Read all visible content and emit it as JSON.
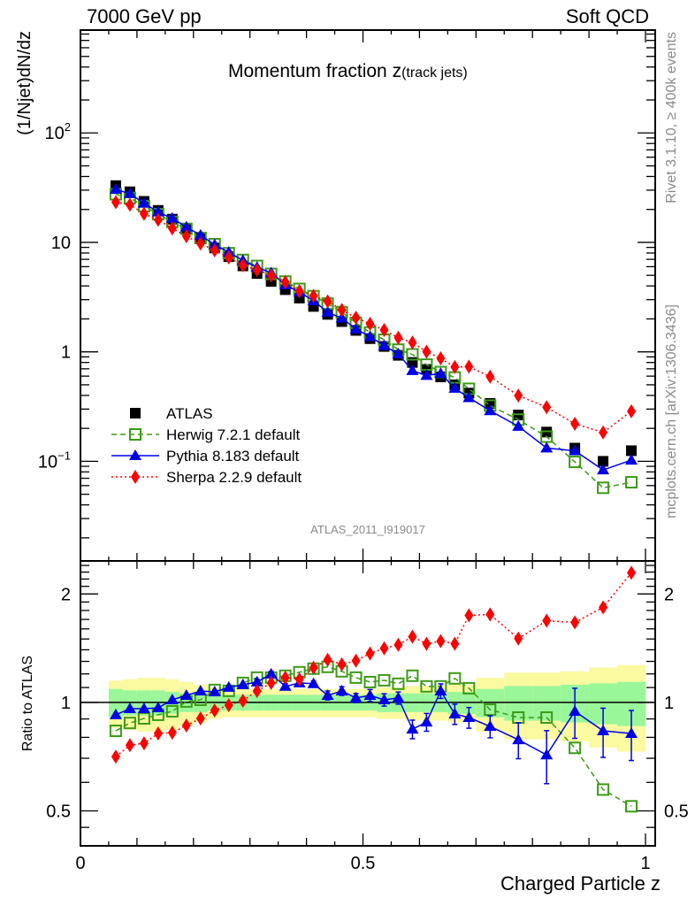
{
  "header": {
    "left": "7000 GeV pp",
    "right": "Soft QCD"
  },
  "side_labels": {
    "rivet": "Rivet 3.1.10, ≥ 400k events",
    "mcplots": "mcplots.cern.ch [arXiv:1306.3436]"
  },
  "chart_data": [
    {
      "type": "line",
      "panel": "main",
      "title": "Momentum fraction z",
      "title_sub": "(track jets)",
      "ylabel": "(1/Njet)dN/dz",
      "xlabel": "",
      "yscale": "log",
      "xlim": [
        0,
        1
      ],
      "ylim": [
        0.0123,
        870
      ],
      "yticks": [
        {
          "v": 100,
          "label": "10",
          "sup": "2"
        },
        {
          "v": 10,
          "label": "10",
          "sup": ""
        },
        {
          "v": 1,
          "label": "1",
          "sup": ""
        },
        {
          "v": 0.1,
          "label": "10",
          "sup": "−1"
        }
      ],
      "analysis_id": "ATLAS_2011_I919017",
      "legend_position": "lower-left",
      "x": [
        0.0625,
        0.0875,
        0.1125,
        0.1375,
        0.1625,
        0.1875,
        0.2125,
        0.2375,
        0.2625,
        0.2875,
        0.3125,
        0.3375,
        0.3625,
        0.3875,
        0.4125,
        0.4375,
        0.4625,
        0.4875,
        0.5125,
        0.5375,
        0.5625,
        0.5875,
        0.6125,
        0.6375,
        0.6625,
        0.6875,
        0.725,
        0.775,
        0.825,
        0.875,
        0.925,
        0.975
      ],
      "series": [
        {
          "name": "ATLAS",
          "values": [
            33,
            29,
            23.7,
            19.6,
            16.3,
            13.2,
            10.8,
            8.9,
            7.4,
            6.1,
            5.2,
            4.4,
            3.7,
            3.1,
            2.6,
            2.2,
            1.89,
            1.57,
            1.32,
            1.12,
            0.93,
            0.8,
            0.69,
            0.59,
            0.5,
            0.42,
            0.338,
            0.265,
            0.185,
            0.132,
            0.1,
            0.125
          ]
        },
        {
          "name": "Herwig 7.2.1 default",
          "ratio": [
            0.834,
            0.877,
            0.903,
            0.924,
            0.945,
            1.006,
            1.017,
            1.083,
            1.077,
            1.133,
            1.172,
            1.172,
            1.186,
            1.213,
            1.241,
            1.255,
            1.22,
            1.172,
            1.139,
            1.152,
            1.127,
            1.186,
            1.108,
            1.108,
            1.166,
            1.095,
            0.955,
            0.908,
            0.908,
            0.748,
            0.573,
            0.515
          ]
        },
        {
          "name": "Pythia 8.183 default",
          "ratio": [
            0.924,
            0.961,
            0.961,
            0.966,
            1.017,
            1.046,
            1.076,
            1.07,
            1.101,
            1.12,
            1.139,
            1.199,
            1.108,
            1.133,
            1.127,
            1.046,
            1.076,
            1.029,
            1.046,
            1.017,
            1.029,
            0.843,
            0.882,
            1.076,
            0.929,
            0.908,
            0.858,
            0.788,
            0.715,
            0.945,
            0.834,
            0.82
          ]
        },
        {
          "name": "Sherpa 2.2.9 default",
          "ratio": [
            0.707,
            0.761,
            0.77,
            0.82,
            0.824,
            0.863,
            0.903,
            0.95,
            0.983,
            1.011,
            1.076,
            1.133,
            1.172,
            1.159,
            1.248,
            1.313,
            1.276,
            1.306,
            1.367,
            1.413,
            1.446,
            1.522,
            1.455,
            1.48,
            1.455,
            1.744,
            1.755,
            1.504,
            1.686,
            1.667,
            1.836,
            2.29
          ]
        }
      ]
    },
    {
      "type": "line",
      "panel": "ratio",
      "ylabel": "Ratio to ATLAS",
      "xlabel": "Charged Particle z",
      "yscale": "log",
      "xlim": [
        0,
        1
      ],
      "ylim": [
        0.4,
        2.47
      ],
      "yticks": [
        {
          "v": 2,
          "label": "2"
        },
        {
          "v": 1,
          "label": "1"
        },
        {
          "v": 0.5,
          "label": "0.5"
        }
      ],
      "xticks": [
        {
          "v": 0,
          "label": "0"
        },
        {
          "v": 0.5,
          "label": "0.5"
        },
        {
          "v": 1,
          "label": "1"
        }
      ],
      "bin_edges": [
        0.05,
        0.075,
        0.1,
        0.125,
        0.15,
        0.175,
        0.2,
        0.225,
        0.25,
        0.275,
        0.3,
        0.325,
        0.35,
        0.375,
        0.4,
        0.425,
        0.45,
        0.475,
        0.5,
        0.525,
        0.55,
        0.575,
        0.6,
        0.625,
        0.65,
        0.675,
        0.7,
        0.75,
        0.8,
        0.85,
        0.9,
        0.95,
        1.0
      ],
      "band_inner": [
        0.09,
        0.08,
        0.08,
        0.08,
        0.07,
        0.06,
        0.06,
        0.05,
        0.05,
        0.05,
        0.05,
        0.05,
        0.05,
        0.05,
        0.05,
        0.05,
        0.05,
        0.05,
        0.05,
        0.06,
        0.06,
        0.06,
        0.06,
        0.06,
        0.07,
        0.07,
        0.09,
        0.11,
        0.11,
        0.12,
        0.13,
        0.14
      ],
      "band_outer": [
        0.15,
        0.16,
        0.17,
        0.17,
        0.16,
        0.14,
        0.12,
        0.1,
        0.09,
        0.09,
        0.09,
        0.09,
        0.09,
        0.09,
        0.09,
        0.09,
        0.09,
        0.09,
        0.09,
        0.1,
        0.1,
        0.11,
        0.11,
        0.11,
        0.12,
        0.12,
        0.17,
        0.21,
        0.21,
        0.22,
        0.25,
        0.27
      ],
      "pythia_err": [
        0.01,
        0.01,
        0.01,
        0.01,
        0.01,
        0.01,
        0.01,
        0.01,
        0.01,
        0.015,
        0.02,
        0.02,
        0.02,
        0.02,
        0.02,
        0.03,
        0.03,
        0.03,
        0.04,
        0.04,
        0.04,
        0.05,
        0.05,
        0.05,
        0.06,
        0.06,
        0.06,
        0.09,
        0.12,
        0.15,
        0.13,
        0.13
      ]
    }
  ],
  "legend": [
    {
      "label": "ATLAS",
      "color": "#000000",
      "marker": "filled-square",
      "line": "none"
    },
    {
      "label": "Herwig 7.2.1 default",
      "color": "#3d9a16",
      "marker": "open-square",
      "line": "dashed"
    },
    {
      "label": "Pythia 8.183 default",
      "color": "#0000e6",
      "marker": "filled-triangle",
      "line": "solid"
    },
    {
      "label": "Sherpa 2.2.9 default",
      "color": "#ff0000",
      "marker": "filled-diamond",
      "line": "dotted"
    }
  ],
  "colors": {
    "band_inner": "#99f799",
    "band_outer": "#fafaa0"
  }
}
